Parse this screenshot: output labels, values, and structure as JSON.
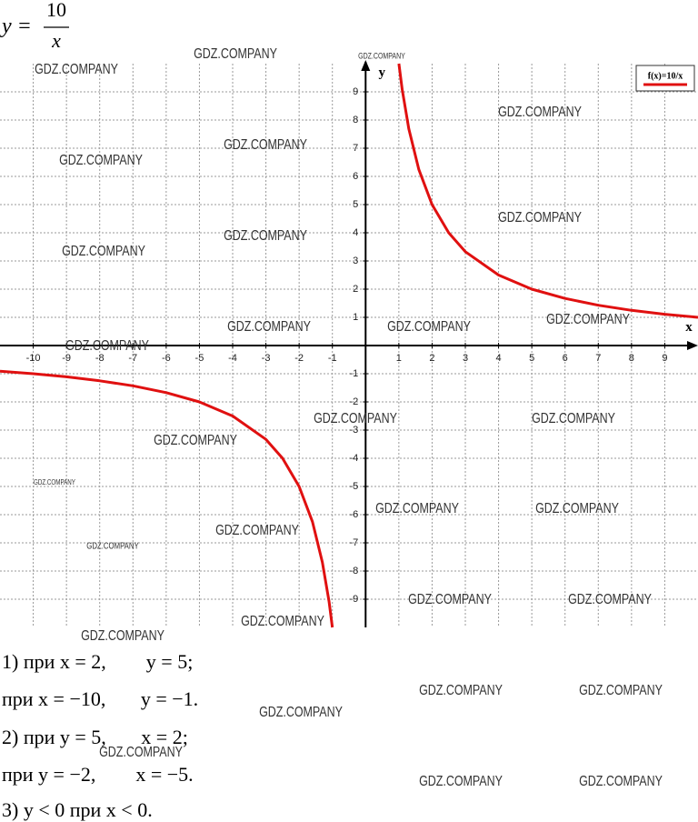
{
  "header": {
    "lhs": "y =",
    "numerator": "10",
    "denominator": "x"
  },
  "graph": {
    "x_label": "x",
    "y_label": "y",
    "legend": "f(x)=10/x",
    "color": "#e01010",
    "grid": true,
    "xlim": [
      -11,
      10
    ],
    "ylim": [
      -10,
      10
    ],
    "xticks": [
      -10,
      -9,
      -8,
      -7,
      -6,
      -5,
      -4,
      -3,
      -2,
      -1,
      1,
      2,
      3,
      4,
      5,
      6,
      7,
      8,
      9
    ],
    "yticks": [
      -9,
      -8,
      -7,
      -6,
      -5,
      -4,
      -3,
      -2,
      -1,
      1,
      2,
      3,
      4,
      5,
      6,
      7,
      8,
      9
    ],
    "x": [
      -11,
      -10,
      -9,
      -8,
      -7,
      -6,
      -5,
      -4,
      -3,
      -2.5,
      -2,
      -1.6,
      -1.3,
      -1.1,
      -1,
      null,
      1,
      1.1,
      1.3,
      1.6,
      2,
      2.5,
      3,
      4,
      5,
      6,
      7,
      8,
      9,
      10
    ],
    "y": [
      -0.91,
      -1,
      -1.11,
      -1.25,
      -1.43,
      -1.67,
      -2,
      -2.5,
      -3.33,
      -4,
      -5,
      -6.25,
      -7.69,
      -9.09,
      -10,
      null,
      10,
      9.09,
      7.69,
      6.25,
      5,
      4,
      3.33,
      2.5,
      2,
      1.67,
      1.43,
      1.25,
      1.11,
      1
    ]
  },
  "answers": [
    "1) при x = 2,        y = 5;",
    "при x = −10,       y = −1.",
    "2) при y = 5,       x = 2;",
    "при y = −2,        x = −5.",
    "3) y < 0 при x < 0."
  ],
  "watermarks": [
    "GDZ.COMPANY",
    "GDZ.COMPANY",
    "GDZ.COMPANY",
    "GDZ.COMPANY",
    "GDZ.COMPANY",
    "GDZ.COMPANY",
    "GDZ.COMPANY",
    "GDZ.COMPANY",
    "GDZ.COMPANY",
    "GDZ.COMPANY",
    "GDZ.COMPANY",
    "GDZ.COMPANY",
    "GDZ.COMPANY",
    "GDZ.COMPANY",
    "GDZ.COMPANY",
    "GDZ.COMPANY",
    "GDZ.COMPANY",
    "GDZ.COMPANY",
    "GDZ.COMPANY",
    "GDZ.COMPANY",
    "GDZ.COMPANY",
    "GDZ.COMPANY",
    "GDZ.COMPANY",
    "GDZ.COMPANY",
    "GDZ.COMPANY",
    "GDZ.COMPANY",
    "GDZ.COMPANY",
    "GDZ.COMPANY",
    "GDZ.COMPANY",
    "GDZ.COMPANY",
    "GDZ.COMPANY"
  ]
}
